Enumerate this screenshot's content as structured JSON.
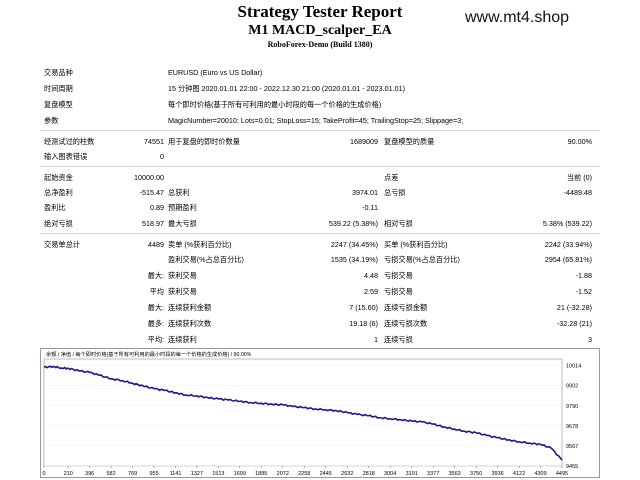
{
  "header": {
    "title": "Strategy Tester Report",
    "ea": "M1 MACD_scalper_EA",
    "broker": "RoboForex-Demo (Build 1380)",
    "watermark": "www.mt4.shop"
  },
  "settings": {
    "symbol_label": "交易品种",
    "symbol": "EURUSD (Euro vs US Dollar)",
    "period_label": "时间周期",
    "period": "15 分钟图 2020.01.01 22:00 - 2022.12.30 21:00 (2020.01.01 - 2023.01.01)",
    "model_label": "复盘模型",
    "model": "每个即时价格(基于所有可利用的最小时段的每一个价格的生成价格)",
    "params_label": "参数",
    "params": "MagicNumber=20010; Lots=0.01; StopLoss=15; TakeProfit=45; TrailingStop=25; Slippage=3;"
  },
  "stats": {
    "bars_label": "经测试过的柱数",
    "bars": "74551",
    "ticks_label": "用于复盘的即时价数量",
    "ticks": "1689009",
    "quality_label": "复盘模型的质量",
    "quality": "90.00%",
    "mismatch_label": "输入图表错误",
    "mismatch": "0",
    "deposit_label": "起始资金",
    "deposit": "10000.00",
    "points_label": "点差",
    "points": "当前 (0)",
    "netprofit_label": "总净盈利",
    "netprofit": "-515.47",
    "grossprofit_label": "总获利",
    "grossprofit": "3974.01",
    "grossloss_label": "总亏损",
    "grossloss": "-4489.48",
    "pf_label": "盈利比",
    "pf": "0.89",
    "payoff_label": "预期盈利",
    "payoff": "-0.11",
    "absdd_label": "绝对亏损",
    "absdd": "518.97",
    "maxdd_label": "最大亏损",
    "maxdd": "539.22 (5.38%)",
    "reldd_label": "相对亏损",
    "reldd": "5.38% (539.22)",
    "trades_label": "交易单总计",
    "trades": "4489",
    "short_label": "卖单 (%获利百分比)",
    "short": "2247 (34.45%)",
    "long_label": "买单 (%获利百分比)",
    "long": "2242 (33.94%)",
    "win_label": "盈利交易(%占总百分比)",
    "win": "1535 (34.19%)",
    "loss_label": "亏损交易(%占总百分比)",
    "loss": "2954 (65.81%)",
    "max_label": "最大:",
    "largest_win_label": "获利交易",
    "largest_win": "4.48",
    "largest_loss_label": "亏损交易",
    "largest_loss": "-1.88",
    "avg_label": "平均",
    "avg_win_label": "获利交易",
    "avg_win": "2.59",
    "avg_loss_label": "亏损交易",
    "avg_loss": "-1.52",
    "max2_label": "最大:",
    "cons_wins_amt_label": "连续获利金额",
    "cons_wins_amt": "7 (15.60)",
    "cons_loss_amt_label": "连续亏损金额",
    "cons_loss_amt": "21 (-32.28)",
    "most_label": "最多:",
    "cons_profit_label": "连续获利次数",
    "cons_profit": "19.18 (6)",
    "cons_lossn_label": "连续亏损次数",
    "cons_lossn": "-32.28 (21)",
    "avg2_label": "平均:",
    "avg_cons_win_label": "连续获利",
    "avg_cons_win": "1",
    "avg_cons_loss_label": "连续亏损",
    "avg_cons_loss": "3"
  },
  "chart_data": {
    "type": "line",
    "legend_text": "余额 / 净值 / 每个即时价格(基于所有可利用的最小时段的每一个价格的生成价格) / 90.00%",
    "x_ticks": [
      "0",
      "210",
      "396",
      "582",
      "769",
      "955",
      "1141",
      "1327",
      "1513",
      "1699",
      "1885",
      "2072",
      "2258",
      "2445",
      "2632",
      "2818",
      "3004",
      "3191",
      "3377",
      "3563",
      "3750",
      "3936",
      "4122",
      "4309",
      "4495"
    ],
    "y_ticks": [
      "10014",
      "9902",
      "9790",
      "9678",
      "9567",
      "9455"
    ],
    "ylim": [
      9455,
      10050
    ],
    "xlim": [
      0,
      4495
    ],
    "line_color": "#1a1a8c",
    "series": [
      {
        "values": [
          [
            0,
            10004
          ],
          [
            80,
            10008
          ],
          [
            150,
            10000
          ],
          [
            210,
            9998
          ],
          [
            300,
            9985
          ],
          [
            396,
            9975
          ],
          [
            480,
            9960
          ],
          [
            582,
            9940
          ],
          [
            680,
            9930
          ],
          [
            769,
            9915
          ],
          [
            860,
            9900
          ],
          [
            955,
            9885
          ],
          [
            1050,
            9875
          ],
          [
            1141,
            9862
          ],
          [
            1230,
            9850
          ],
          [
            1327,
            9845
          ],
          [
            1420,
            9835
          ],
          [
            1513,
            9828
          ],
          [
            1600,
            9822
          ],
          [
            1699,
            9815
          ],
          [
            1790,
            9808
          ],
          [
            1885,
            9804
          ],
          [
            1980,
            9798
          ],
          [
            2072,
            9795
          ],
          [
            2160,
            9786
          ],
          [
            2258,
            9780
          ],
          [
            2350,
            9772
          ],
          [
            2445,
            9768
          ],
          [
            2540,
            9762
          ],
          [
            2632,
            9752
          ],
          [
            2720,
            9742
          ],
          [
            2818,
            9735
          ],
          [
            2910,
            9724
          ],
          [
            3004,
            9718
          ],
          [
            3100,
            9712
          ],
          [
            3191,
            9705
          ],
          [
            3280,
            9700
          ],
          [
            3377,
            9688
          ],
          [
            3470,
            9672
          ],
          [
            3563,
            9660
          ],
          [
            3650,
            9648
          ],
          [
            3750,
            9640
          ],
          [
            3840,
            9625
          ],
          [
            3936,
            9612
          ],
          [
            4030,
            9600
          ],
          [
            4122,
            9590
          ],
          [
            4220,
            9582
          ],
          [
            4309,
            9575
          ],
          [
            4400,
            9555
          ],
          [
            4495,
            9488
          ]
        ]
      }
    ]
  }
}
